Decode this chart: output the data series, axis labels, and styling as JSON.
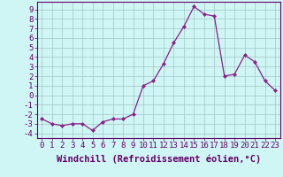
{
  "x": [
    0,
    1,
    2,
    3,
    4,
    5,
    6,
    7,
    8,
    9,
    10,
    11,
    12,
    13,
    14,
    15,
    16,
    17,
    18,
    19,
    20,
    21,
    22,
    23
  ],
  "y": [
    -2.5,
    -3.0,
    -3.2,
    -3.0,
    -3.0,
    -3.7,
    -2.8,
    -2.5,
    -2.5,
    -2.0,
    1.0,
    1.5,
    3.3,
    5.5,
    7.2,
    9.3,
    8.5,
    8.3,
    2.0,
    2.2,
    4.2,
    3.5,
    1.5,
    0.5
  ],
  "line_color": "#882288",
  "marker_color": "#882288",
  "bg_color": "#cff5f5",
  "grid_color": "#99bbbb",
  "xlabel": "Windchill (Refroidissement éolien,°C)",
  "ymin": -4.5,
  "ymax": 9.8,
  "xmin": -0.5,
  "xmax": 23.5,
  "tick_fontsize": 6.5,
  "label_fontsize": 7.5
}
